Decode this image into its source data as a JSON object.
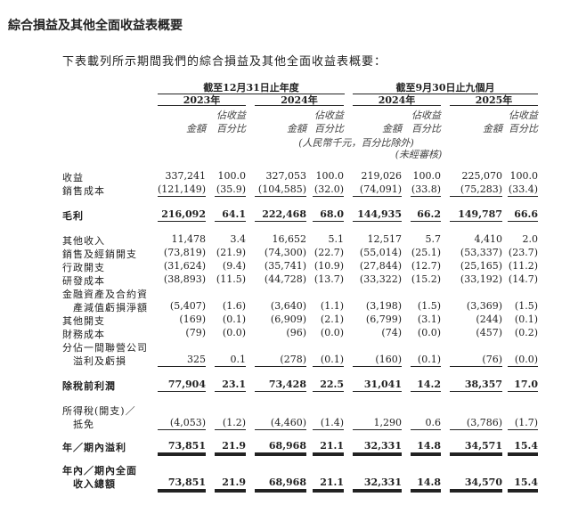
{
  "title": "綜合損益及其他全面收益表概要",
  "intro": "下表載列所示期間我們的綜合損益及其他全面收益表概要：",
  "header": {
    "group1": "截至12月31日止年度",
    "group2": "截至9月30日止九個月",
    "years": [
      "2023年",
      "2024年",
      "2024年",
      "2025年"
    ],
    "amount_label": "金額",
    "pct_label_1": "佔收益",
    "pct_label_2": "百分比",
    "unit_note": "(人民幣千元，百分比除外)",
    "unaudited_note": "(未經審核)"
  },
  "rows": [
    {
      "label": "收益",
      "values": [
        "337,241",
        "100.0",
        "327,053",
        "100.0",
        "219,026",
        "100.0",
        "225,070",
        "100.0"
      ]
    },
    {
      "label": "銷售成本",
      "values": [
        "(121,149)",
        "(35.9)",
        "(104,585)",
        "(32.0)",
        "(74,091)",
        "(33.8)",
        "(75,283)",
        "(33.4)"
      ],
      "underline": "single"
    },
    {
      "label": "毛利",
      "values": [
        "216,092",
        "64.1",
        "222,468",
        "68.0",
        "144,935",
        "66.2",
        "149,787",
        "66.6"
      ],
      "bold": true,
      "underline": "single",
      "gap": true
    },
    {
      "label": "其他收入",
      "values": [
        "11,478",
        "3.4",
        "16,652",
        "5.1",
        "12,517",
        "5.7",
        "4,410",
        "2.0"
      ],
      "gap": true
    },
    {
      "label": "銷售及經銷開支",
      "values": [
        "(73,819)",
        "(21.9)",
        "(74,300)",
        "(22.7)",
        "(55,014)",
        "(25.1)",
        "(53,337)",
        "(23.7)"
      ]
    },
    {
      "label": "行政開支",
      "values": [
        "(31,624)",
        "(9.4)",
        "(35,741)",
        "(10.9)",
        "(27,844)",
        "(12.7)",
        "(25,165)",
        "(11.2)"
      ]
    },
    {
      "label": "研發成本",
      "values": [
        "(38,893)",
        "(11.5)",
        "(44,728)",
        "(13.7)",
        "(33,322)",
        "(15.2)",
        "(33,192)",
        "(14.7)"
      ]
    },
    {
      "label": "金融資產及合約資",
      "values": []
    },
    {
      "label": "產減值虧損淨額",
      "indent": true,
      "values": [
        "(5,407)",
        "(1.6)",
        "(3,640)",
        "(1.1)",
        "(3,198)",
        "(1.5)",
        "(3,369)",
        "(1.5)"
      ]
    },
    {
      "label": "其他開支",
      "values": [
        "(169)",
        "(0.1)",
        "(6,909)",
        "(2.1)",
        "(6,799)",
        "(3.1)",
        "(244)",
        "(0.1)"
      ]
    },
    {
      "label": "財務成本",
      "values": [
        "(79)",
        "(0.0)",
        "(96)",
        "(0.0)",
        "(74)",
        "(0.0)",
        "(457)",
        "(0.2)"
      ]
    },
    {
      "label": "分佔一間聯營公司",
      "values": []
    },
    {
      "label": "溢利及虧損",
      "indent": true,
      "values": [
        "325",
        "0.1",
        "(278)",
        "(0.1)",
        "(160)",
        "(0.1)",
        "(76)",
        "(0.0)"
      ],
      "underline": "single"
    },
    {
      "label": "除稅前利潤",
      "values": [
        "77,904",
        "23.1",
        "73,428",
        "22.5",
        "31,041",
        "14.2",
        "38,357",
        "17.0"
      ],
      "bold": true,
      "underline": "single",
      "gap": true
    },
    {
      "label": "所得稅(開支)／",
      "values": [],
      "gap": true
    },
    {
      "label": "抵免",
      "indent": true,
      "values": [
        "(4,053)",
        "(1.2)",
        "(4,460)",
        "(1.4)",
        "1,290",
        "0.6",
        "(3,786)",
        "(1.7)"
      ],
      "underline": "single"
    },
    {
      "label": "年／期內溢利",
      "values": [
        "73,851",
        "21.9",
        "68,968",
        "21.1",
        "32,331",
        "14.8",
        "34,571",
        "15.4"
      ],
      "bold": true,
      "underline": "double",
      "gap2": true
    },
    {
      "label": "年內／期內全面",
      "values": [],
      "bold": true,
      "gap2": true
    },
    {
      "label": "收入總額",
      "indent": true,
      "values": [
        "73,851",
        "21.9",
        "68,968",
        "21.1",
        "32,331",
        "14.8",
        "34,570",
        "15.4"
      ],
      "bold": true,
      "underline": "double"
    }
  ]
}
